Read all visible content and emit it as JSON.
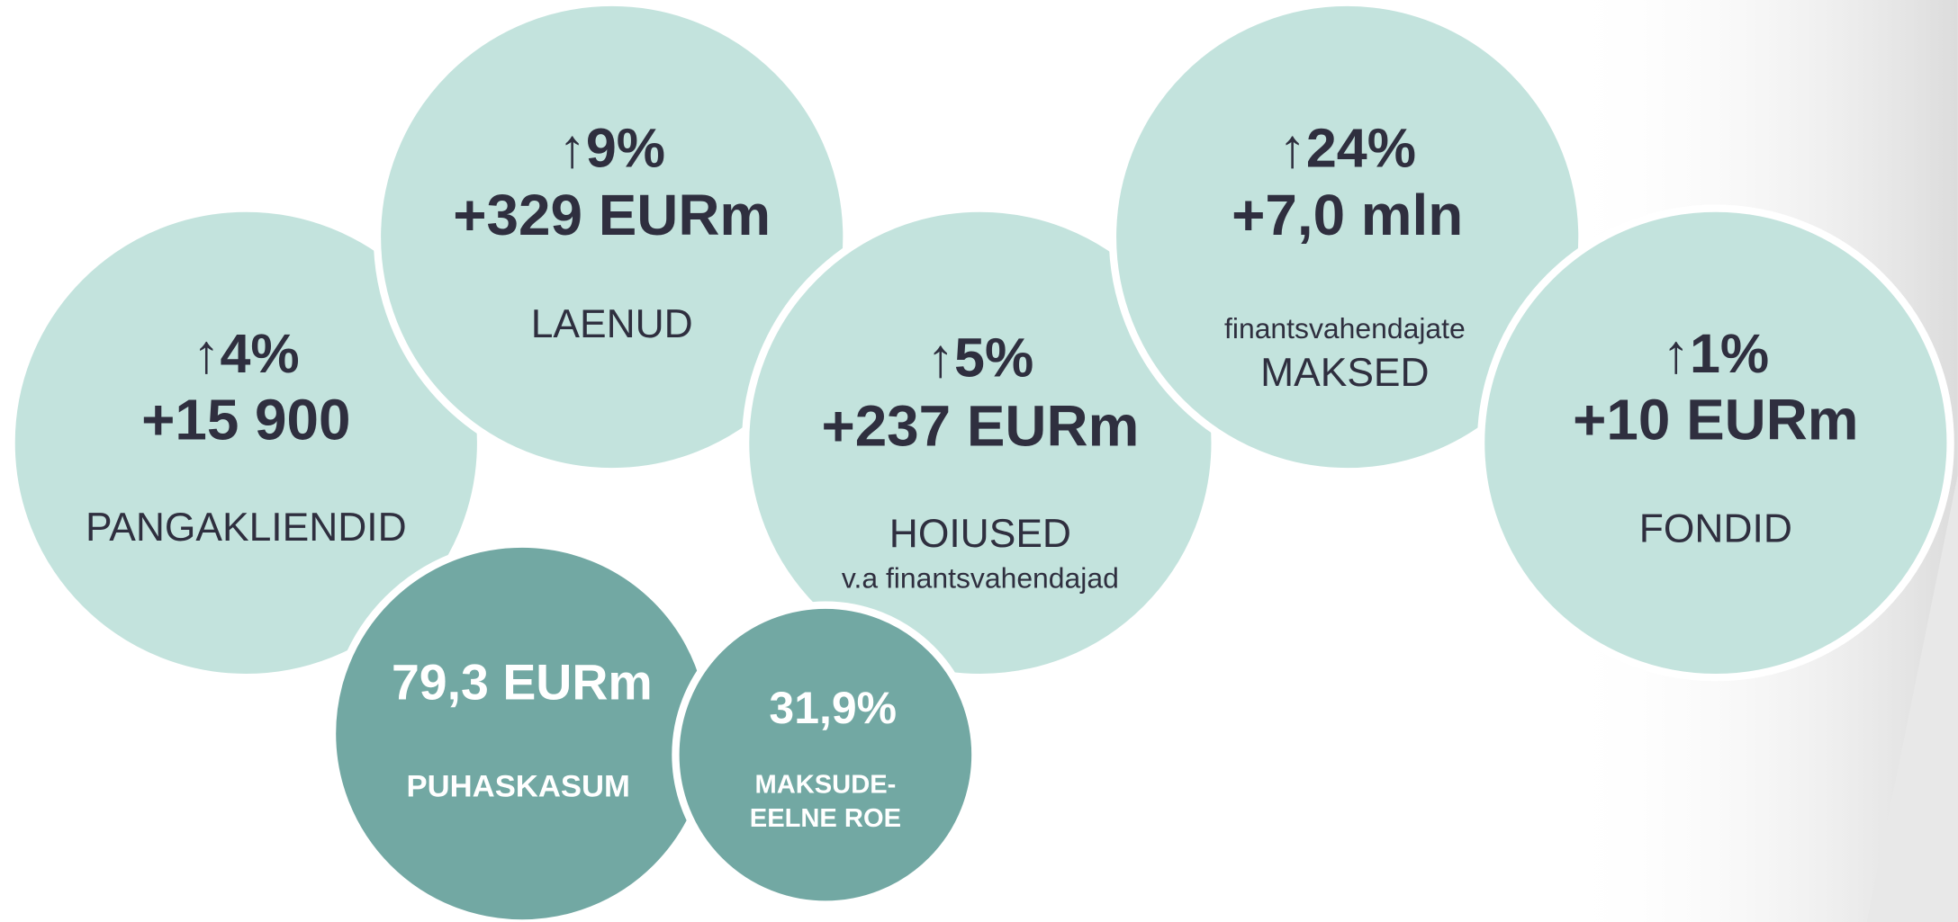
{
  "bubbles": [
    {
      "change": "↑4%",
      "value": "+15 900",
      "label": "PANGAKLIENDID"
    },
    {
      "change": "↑9%",
      "value": "+329 EURm",
      "label": "LAENUD"
    },
    {
      "change": "↑5%",
      "value": "+237 EURm",
      "label": "HOIUSED",
      "note": "v.a finantsvahendajad"
    },
    {
      "change": "↑24%",
      "value": "+7,0 mln",
      "note": "finantsvahendajate",
      "label": "MAKSED"
    },
    {
      "change": "↑1%",
      "value": "+10 EURm",
      "label": "FONDID"
    },
    {
      "value": "79,3 EURm",
      "label": "PUHASKASUM"
    },
    {
      "value": "31,9%",
      "label": "MAKSUDE-",
      "label2": "EELNE ROE"
    }
  ]
}
